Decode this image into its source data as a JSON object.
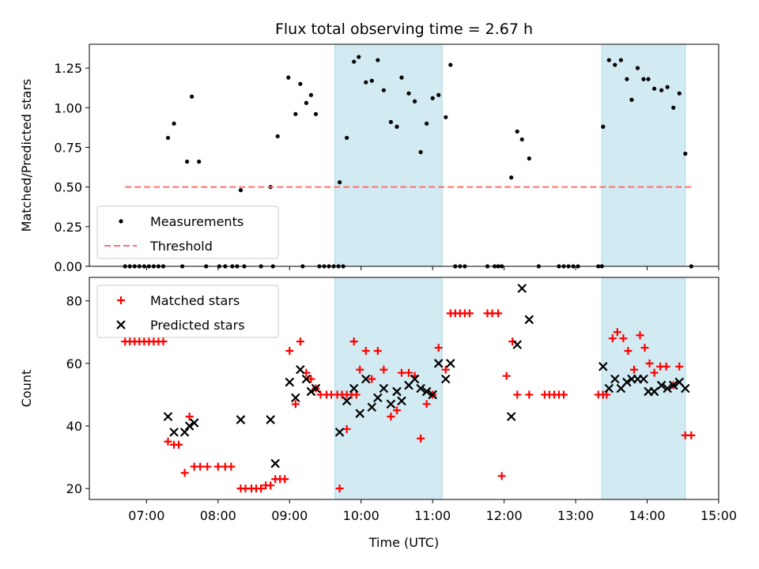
{
  "chart_data": [
    {
      "type": "scatter",
      "title": "Flux total observing time = 2.67 h",
      "xlabel": "",
      "ylabel": "Matched/Predicted stars",
      "xlim": [
        "06:12",
        "15:00"
      ],
      "ylim": [
        0,
        1.4
      ],
      "yticks": [
        0.0,
        0.25,
        0.5,
        0.75,
        1.0,
        1.25
      ],
      "ytick_labels": [
        "0.00",
        "0.25",
        "0.50",
        "0.75",
        "1.00",
        "1.25"
      ],
      "xticks": [
        "07:00",
        "08:00",
        "09:00",
        "10:00",
        "11:00",
        "12:00",
        "13:00",
        "14:00",
        "15:00"
      ],
      "show_xtick_labels": false,
      "grid": false,
      "legend_position": "lower-left",
      "shaded_regions": [
        [
          "09:38",
          "11:08"
        ],
        [
          "13:22",
          "14:32"
        ]
      ],
      "shaded_color": "#add8e6",
      "series": [
        {
          "name": "Measurements",
          "marker": "dot",
          "color": "#000000",
          "points": [
            [
              "06:42",
              0
            ],
            [
              "06:46",
              0
            ],
            [
              "06:50",
              0
            ],
            [
              "06:54",
              0
            ],
            [
              "06:58",
              0
            ],
            [
              "07:02",
              0
            ],
            [
              "07:06",
              0
            ],
            [
              "07:10",
              0
            ],
            [
              "07:14",
              0
            ],
            [
              "07:18",
              0.81
            ],
            [
              "07:23",
              0.9
            ],
            [
              "07:34",
              0.66
            ],
            [
              "07:38",
              1.07
            ],
            [
              "07:44",
              0.66
            ],
            [
              "07:30",
              0
            ],
            [
              "07:50",
              0
            ],
            [
              "08:01",
              0
            ],
            [
              "08:06",
              0
            ],
            [
              "08:12",
              0
            ],
            [
              "08:16",
              0
            ],
            [
              "08:22",
              0
            ],
            [
              "08:36",
              0
            ],
            [
              "08:46",
              0
            ],
            [
              "08:19",
              0.48
            ],
            [
              "08:44",
              0.5
            ],
            [
              "08:50",
              0.82
            ],
            [
              "08:59",
              1.19
            ],
            [
              "09:05",
              0.96
            ],
            [
              "09:09",
              1.15
            ],
            [
              "09:14",
              1.03
            ],
            [
              "09:18",
              1.08
            ],
            [
              "09:22",
              0.96
            ],
            [
              "09:11",
              0
            ],
            [
              "09:25",
              0
            ],
            [
              "09:29",
              0
            ],
            [
              "09:33",
              0
            ],
            [
              "09:37",
              0
            ],
            [
              "09:41",
              0
            ],
            [
              "09:45",
              0
            ],
            [
              "09:42",
              0.53
            ],
            [
              "09:48",
              0.81
            ],
            [
              "09:54",
              1.29
            ],
            [
              "09:58",
              1.32
            ],
            [
              "10:04",
              1.16
            ],
            [
              "10:09",
              1.17
            ],
            [
              "10:14",
              1.3
            ],
            [
              "10:19",
              1.11
            ],
            [
              "10:25",
              0.91
            ],
            [
              "10:30",
              0.88
            ],
            [
              "10:34",
              1.19
            ],
            [
              "10:40",
              1.09
            ],
            [
              "10:45",
              1.04
            ],
            [
              "10:50",
              0.72
            ],
            [
              "10:55",
              0.9
            ],
            [
              "11:00",
              1.06
            ],
            [
              "11:05",
              1.08
            ],
            [
              "11:11",
              0.94
            ],
            [
              "11:15",
              1.27
            ],
            [
              "11:19",
              0
            ],
            [
              "11:23",
              0
            ],
            [
              "11:27",
              0
            ],
            [
              "11:46",
              0
            ],
            [
              "11:52",
              0
            ],
            [
              "11:55",
              0
            ],
            [
              "11:58",
              0
            ],
            [
              "12:06",
              0.56
            ],
            [
              "12:11",
              0.85
            ],
            [
              "12:15",
              0.8
            ],
            [
              "12:21",
              0.68
            ],
            [
              "12:29",
              0
            ],
            [
              "12:46",
              0
            ],
            [
              "12:50",
              0
            ],
            [
              "12:54",
              0
            ],
            [
              "12:58",
              0
            ],
            [
              "13:02",
              0
            ],
            [
              "13:19",
              0
            ],
            [
              "13:22",
              0
            ],
            [
              "13:23",
              0.88
            ],
            [
              "13:28",
              1.3
            ],
            [
              "13:33",
              1.27
            ],
            [
              "13:38",
              1.3
            ],
            [
              "13:43",
              1.18
            ],
            [
              "13:47",
              1.05
            ],
            [
              "13:52",
              1.25
            ],
            [
              "13:57",
              1.18
            ],
            [
              "14:01",
              1.18
            ],
            [
              "14:06",
              1.12
            ],
            [
              "14:12",
              1.11
            ],
            [
              "14:17",
              1.13
            ],
            [
              "14:22",
              1.0
            ],
            [
              "14:27",
              1.09
            ],
            [
              "14:32",
              0.71
            ],
            [
              "14:37",
              0
            ]
          ]
        },
        {
          "name": "Threshold",
          "style": "dashed-line",
          "color": "#ff6f6f",
          "points": [
            [
              "06:42",
              0.5
            ],
            [
              "14:37",
              0.5
            ]
          ]
        }
      ]
    },
    {
      "type": "scatter",
      "xlabel": "Time (UTC)",
      "ylabel": "Count",
      "xlim": [
        "06:12",
        "15:00"
      ],
      "ylim": [
        16.5,
        87.5
      ],
      "yticks": [
        20,
        40,
        60,
        80
      ],
      "ytick_labels": [
        "20",
        "40",
        "60",
        "80"
      ],
      "xticks": [
        "07:00",
        "08:00",
        "09:00",
        "10:00",
        "11:00",
        "12:00",
        "13:00",
        "14:00",
        "15:00"
      ],
      "xtick_labels": [
        "07:00",
        "08:00",
        "09:00",
        "10:00",
        "11:00",
        "12:00",
        "13:00",
        "14:00",
        "15:00"
      ],
      "grid": false,
      "legend_position": "top-left",
      "shaded_regions": [
        [
          "09:38",
          "11:08"
        ],
        [
          "13:22",
          "14:32"
        ]
      ],
      "shaded_color": "#add8e6",
      "series": [
        {
          "name": "Matched stars",
          "marker": "plus",
          "color": "#ff0000",
          "points": [
            [
              "06:42",
              67
            ],
            [
              "06:46",
              67
            ],
            [
              "06:50",
              67
            ],
            [
              "06:54",
              67
            ],
            [
              "06:58",
              67
            ],
            [
              "07:02",
              67
            ],
            [
              "07:06",
              67
            ],
            [
              "07:10",
              67
            ],
            [
              "07:14",
              67
            ],
            [
              "07:18",
              35
            ],
            [
              "07:23",
              34
            ],
            [
              "07:27",
              34
            ],
            [
              "07:32",
              25
            ],
            [
              "07:36",
              43
            ],
            [
              "07:40",
              27
            ],
            [
              "07:45",
              27
            ],
            [
              "07:51",
              27
            ],
            [
              "08:00",
              27
            ],
            [
              "08:06",
              27
            ],
            [
              "08:11",
              27
            ],
            [
              "08:19",
              20
            ],
            [
              "08:23",
              20
            ],
            [
              "08:28",
              20
            ],
            [
              "08:32",
              20
            ],
            [
              "08:36",
              20
            ],
            [
              "08:40",
              21
            ],
            [
              "08:44",
              21
            ],
            [
              "08:48",
              23
            ],
            [
              "08:52",
              23
            ],
            [
              "08:56",
              23
            ],
            [
              "09:00",
              64
            ],
            [
              "09:05",
              47
            ],
            [
              "09:09",
              67
            ],
            [
              "09:14",
              57
            ],
            [
              "09:18",
              55
            ],
            [
              "09:22",
              52
            ],
            [
              "09:26",
              50
            ],
            [
              "09:31",
              50
            ],
            [
              "09:35",
              50
            ],
            [
              "09:40",
              50
            ],
            [
              "09:44",
              50
            ],
            [
              "09:48",
              50
            ],
            [
              "09:52",
              50
            ],
            [
              "09:56",
              50
            ],
            [
              "09:42",
              20
            ],
            [
              "09:48",
              39
            ],
            [
              "09:54",
              67
            ],
            [
              "09:59",
              58
            ],
            [
              "10:04",
              64
            ],
            [
              "10:09",
              55
            ],
            [
              "10:14",
              64
            ],
            [
              "10:19",
              58
            ],
            [
              "10:25",
              43
            ],
            [
              "10:30",
              45
            ],
            [
              "10:34",
              57
            ],
            [
              "10:40",
              57
            ],
            [
              "10:45",
              56
            ],
            [
              "10:50",
              36
            ],
            [
              "10:55",
              47
            ],
            [
              "11:00",
              50
            ],
            [
              "11:05",
              65
            ],
            [
              "11:11",
              58
            ],
            [
              "11:15",
              76
            ],
            [
              "11:19",
              76
            ],
            [
              "11:23",
              76
            ],
            [
              "11:27",
              76
            ],
            [
              "11:31",
              76
            ],
            [
              "11:46",
              76
            ],
            [
              "11:50",
              76
            ],
            [
              "11:55",
              76
            ],
            [
              "11:58",
              24
            ],
            [
              "12:02",
              56
            ],
            [
              "12:07",
              67
            ],
            [
              "12:11",
              50
            ],
            [
              "12:21",
              50
            ],
            [
              "12:34",
              50
            ],
            [
              "12:38",
              50
            ],
            [
              "12:42",
              50
            ],
            [
              "12:46",
              50
            ],
            [
              "12:50",
              50
            ],
            [
              "13:19",
              50
            ],
            [
              "13:23",
              50
            ],
            [
              "13:26",
              50
            ],
            [
              "13:31",
              68
            ],
            [
              "13:35",
              70
            ],
            [
              "13:40",
              68
            ],
            [
              "13:44",
              64
            ],
            [
              "13:49",
              58
            ],
            [
              "13:54",
              69
            ],
            [
              "13:58",
              65
            ],
            [
              "14:02",
              60
            ],
            [
              "14:06",
              57
            ],
            [
              "14:11",
              59
            ],
            [
              "14:16",
              59
            ],
            [
              "14:22",
              53
            ],
            [
              "14:27",
              59
            ],
            [
              "14:32",
              37
            ],
            [
              "14:37",
              37
            ]
          ]
        },
        {
          "name": "Predicted stars",
          "marker": "x",
          "color": "#000000",
          "points": [
            [
              "07:18",
              43
            ],
            [
              "07:23",
              38
            ],
            [
              "07:32",
              38
            ],
            [
              "07:36",
              40
            ],
            [
              "07:40",
              41
            ],
            [
              "08:19",
              42
            ],
            [
              "08:44",
              42
            ],
            [
              "08:48",
              28
            ],
            [
              "09:00",
              54
            ],
            [
              "09:05",
              49
            ],
            [
              "09:09",
              58
            ],
            [
              "09:14",
              55
            ],
            [
              "09:18",
              51
            ],
            [
              "09:22",
              52
            ],
            [
              "09:42",
              38
            ],
            [
              "09:48",
              48
            ],
            [
              "09:54",
              52
            ],
            [
              "09:59",
              44
            ],
            [
              "10:04",
              55
            ],
            [
              "10:09",
              46
            ],
            [
              "10:14",
              49
            ],
            [
              "10:19",
              52
            ],
            [
              "10:25",
              47
            ],
            [
              "10:30",
              51
            ],
            [
              "10:34",
              48
            ],
            [
              "10:40",
              53
            ],
            [
              "10:45",
              55
            ],
            [
              "10:50",
              52
            ],
            [
              "10:55",
              51
            ],
            [
              "11:00",
              50
            ],
            [
              "11:05",
              60
            ],
            [
              "11:11",
              55
            ],
            [
              "11:15",
              60
            ],
            [
              "12:06",
              43
            ],
            [
              "12:11",
              66
            ],
            [
              "12:15",
              84
            ],
            [
              "12:21",
              74
            ],
            [
              "13:23",
              59
            ],
            [
              "13:28",
              52
            ],
            [
              "13:33",
              55
            ],
            [
              "13:38",
              52
            ],
            [
              "13:43",
              54
            ],
            [
              "13:47",
              55
            ],
            [
              "13:52",
              55
            ],
            [
              "13:57",
              55
            ],
            [
              "14:01",
              51
            ],
            [
              "14:06",
              51
            ],
            [
              "14:12",
              53
            ],
            [
              "14:17",
              52
            ],
            [
              "14:22",
              53
            ],
            [
              "14:27",
              54
            ],
            [
              "14:32",
              52
            ]
          ]
        }
      ]
    }
  ]
}
